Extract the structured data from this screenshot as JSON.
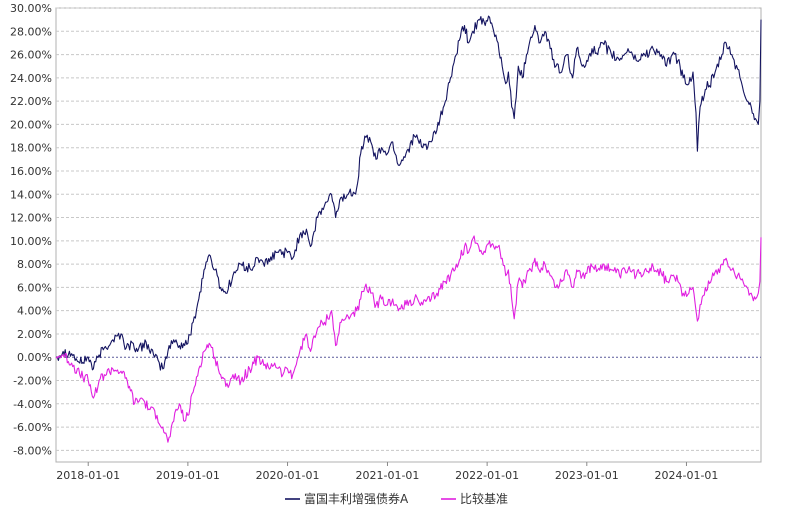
{
  "chart_data": {
    "type": "line",
    "x_range": [
      "2017-09-05",
      "2024-09-30"
    ],
    "x_ticks": [
      "2018-01-01",
      "2019-01-01",
      "2020-01-01",
      "2021-01-01",
      "2022-01-01",
      "2023-01-01",
      "2024-01-01"
    ],
    "y_ticks": [
      "30.00%",
      "28.00%",
      "26.00%",
      "24.00%",
      "22.00%",
      "20.00%",
      "18.00%",
      "16.00%",
      "14.00%",
      "12.00%",
      "10.00%",
      "8.00%",
      "6.00%",
      "4.00%",
      "2.00%",
      "0.00%",
      "-2.00%",
      "-4.00%",
      "-6.00%",
      "-8.00%"
    ],
    "ylim": [
      -9,
      30
    ],
    "grid": true,
    "legend_position": "bottom",
    "series": [
      {
        "name": "富国丰利增强债券A",
        "color": "#141460",
        "points": [
          [
            "2017-09-05",
            0.0
          ],
          [
            "2017-10-01",
            0.5
          ],
          [
            "2017-11-01",
            0.3
          ],
          [
            "2017-12-01",
            -0.5
          ],
          [
            "2018-01-01",
            0.0
          ],
          [
            "2018-01-20",
            -1.0
          ],
          [
            "2018-02-10",
            0.2
          ],
          [
            "2018-03-01",
            0.8
          ],
          [
            "2018-04-01",
            1.5
          ],
          [
            "2018-05-01",
            2.0
          ],
          [
            "2018-05-20",
            0.8
          ],
          [
            "2018-06-15",
            1.2
          ],
          [
            "2018-07-01",
            0.5
          ],
          [
            "2018-08-01",
            1.3
          ],
          [
            "2018-09-01",
            0.0
          ],
          [
            "2018-10-01",
            -1.0
          ],
          [
            "2018-10-20",
            0.5
          ],
          [
            "2018-11-10",
            1.5
          ],
          [
            "2018-12-01",
            1.0
          ],
          [
            "2019-01-01",
            1.2
          ],
          [
            "2019-01-20",
            3.0
          ],
          [
            "2019-02-10",
            5.0
          ],
          [
            "2019-03-01",
            7.5
          ],
          [
            "2019-03-20",
            8.8
          ],
          [
            "2019-04-10",
            7.5
          ],
          [
            "2019-05-01",
            6.0
          ],
          [
            "2019-05-20",
            5.5
          ],
          [
            "2019-06-15",
            7.0
          ],
          [
            "2019-07-15",
            8.0
          ],
          [
            "2019-08-20",
            7.5
          ],
          [
            "2019-09-15",
            8.5
          ],
          [
            "2019-10-20",
            8.0
          ],
          [
            "2019-11-20",
            9.0
          ],
          [
            "2020-01-01",
            9.0
          ],
          [
            "2020-01-20",
            8.5
          ],
          [
            "2020-02-15",
            10.5
          ],
          [
            "2020-03-10",
            11.0
          ],
          [
            "2020-03-25",
            9.5
          ],
          [
            "2020-04-20",
            12.0
          ],
          [
            "2020-05-15",
            13.0
          ],
          [
            "2020-06-10",
            14.0
          ],
          [
            "2020-06-25",
            12.0
          ],
          [
            "2020-07-10",
            13.5
          ],
          [
            "2020-08-10",
            14.0
          ],
          [
            "2020-09-10",
            14.5
          ],
          [
            "2020-09-25",
            17.5
          ],
          [
            "2020-10-10",
            19.0
          ],
          [
            "2020-11-01",
            18.5
          ],
          [
            "2020-11-20",
            17.0
          ],
          [
            "2020-12-10",
            18.0
          ],
          [
            "2021-01-01",
            17.5
          ],
          [
            "2021-01-20",
            18.5
          ],
          [
            "2021-02-10",
            16.5
          ],
          [
            "2021-03-10",
            17.5
          ],
          [
            "2021-04-10",
            19.0
          ],
          [
            "2021-05-10",
            18.0
          ],
          [
            "2021-06-10",
            18.5
          ],
          [
            "2021-07-01",
            19.5
          ],
          [
            "2021-08-01",
            22.0
          ],
          [
            "2021-08-20",
            24.0
          ],
          [
            "2021-09-10",
            26.0
          ],
          [
            "2021-09-25",
            27.5
          ],
          [
            "2021-10-10",
            28.5
          ],
          [
            "2021-10-25",
            27.0
          ],
          [
            "2021-11-10",
            28.0
          ],
          [
            "2021-12-01",
            29.0
          ],
          [
            "2021-12-25",
            28.5
          ],
          [
            "2022-01-10",
            29.2
          ],
          [
            "2022-01-25",
            28.0
          ],
          [
            "2022-02-10",
            27.0
          ],
          [
            "2022-02-25",
            25.0
          ],
          [
            "2022-03-10",
            23.5
          ],
          [
            "2022-03-20",
            24.5
          ],
          [
            "2022-04-01",
            21.5
          ],
          [
            "2022-04-10",
            20.5
          ],
          [
            "2022-04-25",
            25.0
          ],
          [
            "2022-05-10",
            24.0
          ],
          [
            "2022-05-25",
            26.0
          ],
          [
            "2022-06-10",
            27.5
          ],
          [
            "2022-06-25",
            28.5
          ],
          [
            "2022-07-10",
            27.0
          ],
          [
            "2022-08-01",
            28.0
          ],
          [
            "2022-08-20",
            26.5
          ],
          [
            "2022-09-10",
            25.0
          ],
          [
            "2022-10-01",
            24.5
          ],
          [
            "2022-10-20",
            26.0
          ],
          [
            "2022-11-10",
            24.0
          ],
          [
            "2022-11-25",
            26.5
          ],
          [
            "2022-12-15",
            25.0
          ],
          [
            "2023-01-01",
            25.5
          ],
          [
            "2023-01-20",
            26.5
          ],
          [
            "2023-02-10",
            26.0
          ],
          [
            "2023-03-01",
            27.0
          ],
          [
            "2023-04-01",
            26.0
          ],
          [
            "2023-05-01",
            25.5
          ],
          [
            "2023-06-01",
            26.5
          ],
          [
            "2023-07-01",
            25.5
          ],
          [
            "2023-08-01",
            26.0
          ],
          [
            "2023-09-01",
            26.5
          ],
          [
            "2023-10-01",
            26.0
          ],
          [
            "2023-10-20",
            25.0
          ],
          [
            "2023-11-10",
            26.0
          ],
          [
            "2023-12-01",
            25.5
          ],
          [
            "2023-12-20",
            24.0
          ],
          [
            "2024-01-10",
            23.5
          ],
          [
            "2024-01-25",
            24.5
          ],
          [
            "2024-02-05",
            21.0
          ],
          [
            "2024-02-10",
            17.7
          ],
          [
            "2024-02-20",
            21.5
          ],
          [
            "2024-03-10",
            23.0
          ],
          [
            "2024-04-10",
            24.0
          ],
          [
            "2024-05-10",
            26.0
          ],
          [
            "2024-05-25",
            27.0
          ],
          [
            "2024-06-15",
            26.0
          ],
          [
            "2024-07-15",
            24.0
          ],
          [
            "2024-08-10",
            22.0
          ],
          [
            "2024-08-25",
            21.5
          ],
          [
            "2024-09-10",
            20.5
          ],
          [
            "2024-09-20",
            20.0
          ],
          [
            "2024-09-26",
            22.0
          ],
          [
            "2024-09-30",
            29.0
          ]
        ]
      },
      {
        "name": "比较基准",
        "color": "#e020e0",
        "points": [
          [
            "2017-09-05",
            0.0
          ],
          [
            "2017-10-01",
            0.2
          ],
          [
            "2017-11-01",
            -0.5
          ],
          [
            "2017-12-01",
            -1.5
          ],
          [
            "2018-01-01",
            -2.0
          ],
          [
            "2018-01-20",
            -3.5
          ],
          [
            "2018-02-10",
            -2.0
          ],
          [
            "2018-03-01",
            -1.5
          ],
          [
            "2018-04-01",
            -1.0
          ],
          [
            "2018-05-01",
            -1.2
          ],
          [
            "2018-06-01",
            -2.5
          ],
          [
            "2018-06-20",
            -4.0
          ],
          [
            "2018-07-15",
            -3.5
          ],
          [
            "2018-08-15",
            -4.5
          ],
          [
            "2018-09-10",
            -5.0
          ],
          [
            "2018-10-01",
            -6.0
          ],
          [
            "2018-10-20",
            -7.3
          ],
          [
            "2018-11-10",
            -5.5
          ],
          [
            "2018-12-01",
            -4.0
          ],
          [
            "2018-12-20",
            -5.5
          ],
          [
            "2019-01-01",
            -5.0
          ],
          [
            "2019-01-20",
            -3.0
          ],
          [
            "2019-02-10",
            -1.0
          ],
          [
            "2019-03-01",
            0.5
          ],
          [
            "2019-03-20",
            1.2
          ],
          [
            "2019-04-10",
            0.0
          ],
          [
            "2019-05-01",
            -1.5
          ],
          [
            "2019-05-20",
            -2.5
          ],
          [
            "2019-06-15",
            -1.5
          ],
          [
            "2019-07-15",
            -2.0
          ],
          [
            "2019-08-15",
            -1.0
          ],
          [
            "2019-09-15",
            0.0
          ],
          [
            "2019-10-15",
            -1.0
          ],
          [
            "2019-11-15",
            -0.5
          ],
          [
            "2019-12-15",
            -1.5
          ],
          [
            "2020-01-01",
            -1.0
          ],
          [
            "2020-01-20",
            -1.5
          ],
          [
            "2020-02-15",
            0.5
          ],
          [
            "2020-03-10",
            2.0
          ],
          [
            "2020-03-25",
            0.5
          ],
          [
            "2020-04-20",
            2.5
          ],
          [
            "2020-05-15",
            3.0
          ],
          [
            "2020-06-10",
            4.0
          ],
          [
            "2020-06-25",
            1.0
          ],
          [
            "2020-07-15",
            3.0
          ],
          [
            "2020-08-10",
            3.5
          ],
          [
            "2020-09-10",
            4.0
          ],
          [
            "2020-09-25",
            5.0
          ],
          [
            "2020-10-10",
            6.0
          ],
          [
            "2020-11-01",
            5.5
          ],
          [
            "2020-11-20",
            4.5
          ],
          [
            "2020-12-10",
            5.0
          ],
          [
            "2021-01-01",
            4.5
          ],
          [
            "2021-01-20",
            5.0
          ],
          [
            "2021-02-10",
            4.0
          ],
          [
            "2021-03-10",
            4.5
          ],
          [
            "2021-04-10",
            5.0
          ],
          [
            "2021-05-10",
            4.5
          ],
          [
            "2021-06-10",
            5.0
          ],
          [
            "2021-07-01",
            5.5
          ],
          [
            "2021-08-01",
            6.5
          ],
          [
            "2021-08-20",
            7.0
          ],
          [
            "2021-09-10",
            8.0
          ],
          [
            "2021-09-25",
            8.5
          ],
          [
            "2021-10-10",
            9.5
          ],
          [
            "2021-10-25",
            9.0
          ],
          [
            "2021-11-10",
            10.2
          ],
          [
            "2021-12-01",
            9.5
          ],
          [
            "2021-12-25",
            9.0
          ],
          [
            "2022-01-10",
            10.0
          ],
          [
            "2022-01-25",
            9.5
          ],
          [
            "2022-02-10",
            9.5
          ],
          [
            "2022-02-25",
            8.5
          ],
          [
            "2022-03-10",
            7.0
          ],
          [
            "2022-03-20",
            7.5
          ],
          [
            "2022-04-01",
            5.0
          ],
          [
            "2022-04-10",
            3.3
          ],
          [
            "2022-04-25",
            6.5
          ],
          [
            "2022-05-10",
            6.0
          ],
          [
            "2022-05-25",
            7.0
          ],
          [
            "2022-06-10",
            7.5
          ],
          [
            "2022-06-25",
            8.5
          ],
          [
            "2022-07-10",
            7.5
          ],
          [
            "2022-08-01",
            8.0
          ],
          [
            "2022-08-20",
            7.0
          ],
          [
            "2022-09-10",
            6.0
          ],
          [
            "2022-10-01",
            6.5
          ],
          [
            "2022-10-20",
            7.5
          ],
          [
            "2022-11-10",
            6.0
          ],
          [
            "2022-11-25",
            7.5
          ],
          [
            "2022-12-15",
            7.0
          ],
          [
            "2023-01-01",
            7.2
          ],
          [
            "2023-01-20",
            7.8
          ],
          [
            "2023-02-10",
            7.5
          ],
          [
            "2023-03-01",
            8.0
          ],
          [
            "2023-04-01",
            7.5
          ],
          [
            "2023-05-01",
            7.0
          ],
          [
            "2023-06-01",
            7.5
          ],
          [
            "2023-07-01",
            7.0
          ],
          [
            "2023-08-01",
            7.5
          ],
          [
            "2023-09-01",
            7.8
          ],
          [
            "2023-10-01",
            7.2
          ],
          [
            "2023-10-20",
            6.5
          ],
          [
            "2023-11-10",
            7.0
          ],
          [
            "2023-12-01",
            6.5
          ],
          [
            "2023-12-20",
            5.5
          ],
          [
            "2024-01-10",
            5.5
          ],
          [
            "2024-01-25",
            6.0
          ],
          [
            "2024-02-05",
            4.0
          ],
          [
            "2024-02-10",
            3.1
          ],
          [
            "2024-02-20",
            4.5
          ],
          [
            "2024-03-10",
            6.0
          ],
          [
            "2024-04-10",
            7.0
          ],
          [
            "2024-05-10",
            8.0
          ],
          [
            "2024-05-25",
            8.5
          ],
          [
            "2024-06-15",
            7.5
          ],
          [
            "2024-07-15",
            6.8
          ],
          [
            "2024-08-10",
            6.0
          ],
          [
            "2024-08-25",
            5.5
          ],
          [
            "2024-09-10",
            5.0
          ],
          [
            "2024-09-20",
            5.5
          ],
          [
            "2024-09-26",
            6.5
          ],
          [
            "2024-09-30",
            10.3
          ]
        ]
      }
    ]
  }
}
